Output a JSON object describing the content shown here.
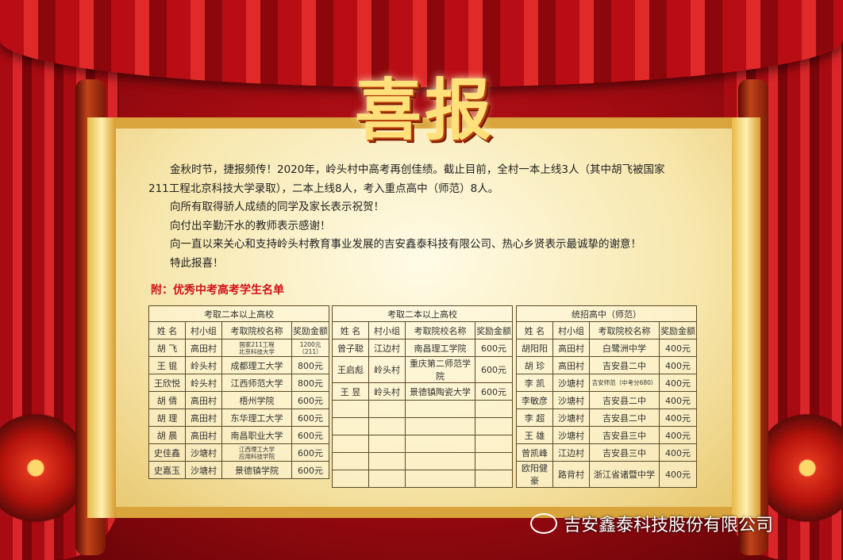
{
  "title": "喜报",
  "body": [
    "金秋时节，捷报频传！2020年，岭头村中高考再创佳绩。截止目前，全村一本上线3人（其中胡飞被国家211工程北京科技大学录取），二本上线8人，考入重点高中（师范）8人。",
    "向所有取得骄人成绩的同学及家长表示祝贺！",
    "向付出辛勤汗水的教师表示感谢！",
    "向一直以来关心和支持岭头村教育事业发展的吉安鑫泰科技有限公司、热心乡贤表示最诚挚的谢意！",
    "特此报喜！"
  ],
  "appendix": "附：优秀中考高考学生名单",
  "columns": [
    "姓 名",
    "村小组",
    "考取院校名称",
    "奖励金额"
  ],
  "tables": [
    {
      "caption": "考取二本以上高校",
      "rows": [
        [
          "胡 飞",
          "高田村",
          "国家211工程\n北京科技大学",
          "1200元\n（211）"
        ],
        [
          "王 锟",
          "岭头村",
          "成都理工大学",
          "800元"
        ],
        [
          "王欣悦",
          "岭头村",
          "江西师范大学",
          "800元"
        ],
        [
          "胡 倩",
          "高田村",
          "梧州学院",
          "600元"
        ],
        [
          "胡 理",
          "高田村",
          "东华理工大学",
          "600元"
        ],
        [
          "胡 晨",
          "高田村",
          "南昌职业大学",
          "600元"
        ],
        [
          "史佳鑫",
          "沙塘村",
          "江西理工大学\n应用科技学院",
          "600元"
        ],
        [
          "史嘉玉",
          "沙塘村",
          "景德镇学院",
          "600元"
        ]
      ]
    },
    {
      "caption": "考取二本以上高校",
      "rows": [
        [
          "曾子聪",
          "江边村",
          "南昌理工学院",
          "600元"
        ],
        [
          "王启彪",
          "岭头村",
          "重庆第二师范学院",
          "600元"
        ],
        [
          "王 昱",
          "岭头村",
          "景德镇陶瓷大学",
          "600元"
        ],
        [
          "",
          "",
          "",
          ""
        ],
        [
          "",
          "",
          "",
          ""
        ],
        [
          "",
          "",
          "",
          ""
        ],
        [
          "",
          "",
          "",
          ""
        ],
        [
          "",
          "",
          "",
          ""
        ]
      ]
    },
    {
      "caption": "统招高中（师范）",
      "rows": [
        [
          "胡阳阳",
          "高田村",
          "白鹭洲中学",
          "400元"
        ],
        [
          "胡 珍",
          "高田村",
          "吉安县二中",
          "400元"
        ],
        [
          "李 凯",
          "沙塘村",
          "吉安师范（中考分680）",
          "400元"
        ],
        [
          "李敏彦",
          "沙塘村",
          "吉安县二中",
          "400元"
        ],
        [
          "李 超",
          "沙塘村",
          "吉安县二中",
          "400元"
        ],
        [
          "王 雄",
          "沙塘村",
          "吉安县三中",
          "400元"
        ],
        [
          "曾凯峰",
          "江边村",
          "吉安县三中",
          "400元"
        ],
        [
          "欧阳健豪",
          "路背村",
          "浙江省诸暨中学",
          "400元"
        ]
      ]
    }
  ],
  "watermark": "吉安鑫泰科技股份有限公司",
  "icons": {
    "watermark": "wechat-icon"
  }
}
